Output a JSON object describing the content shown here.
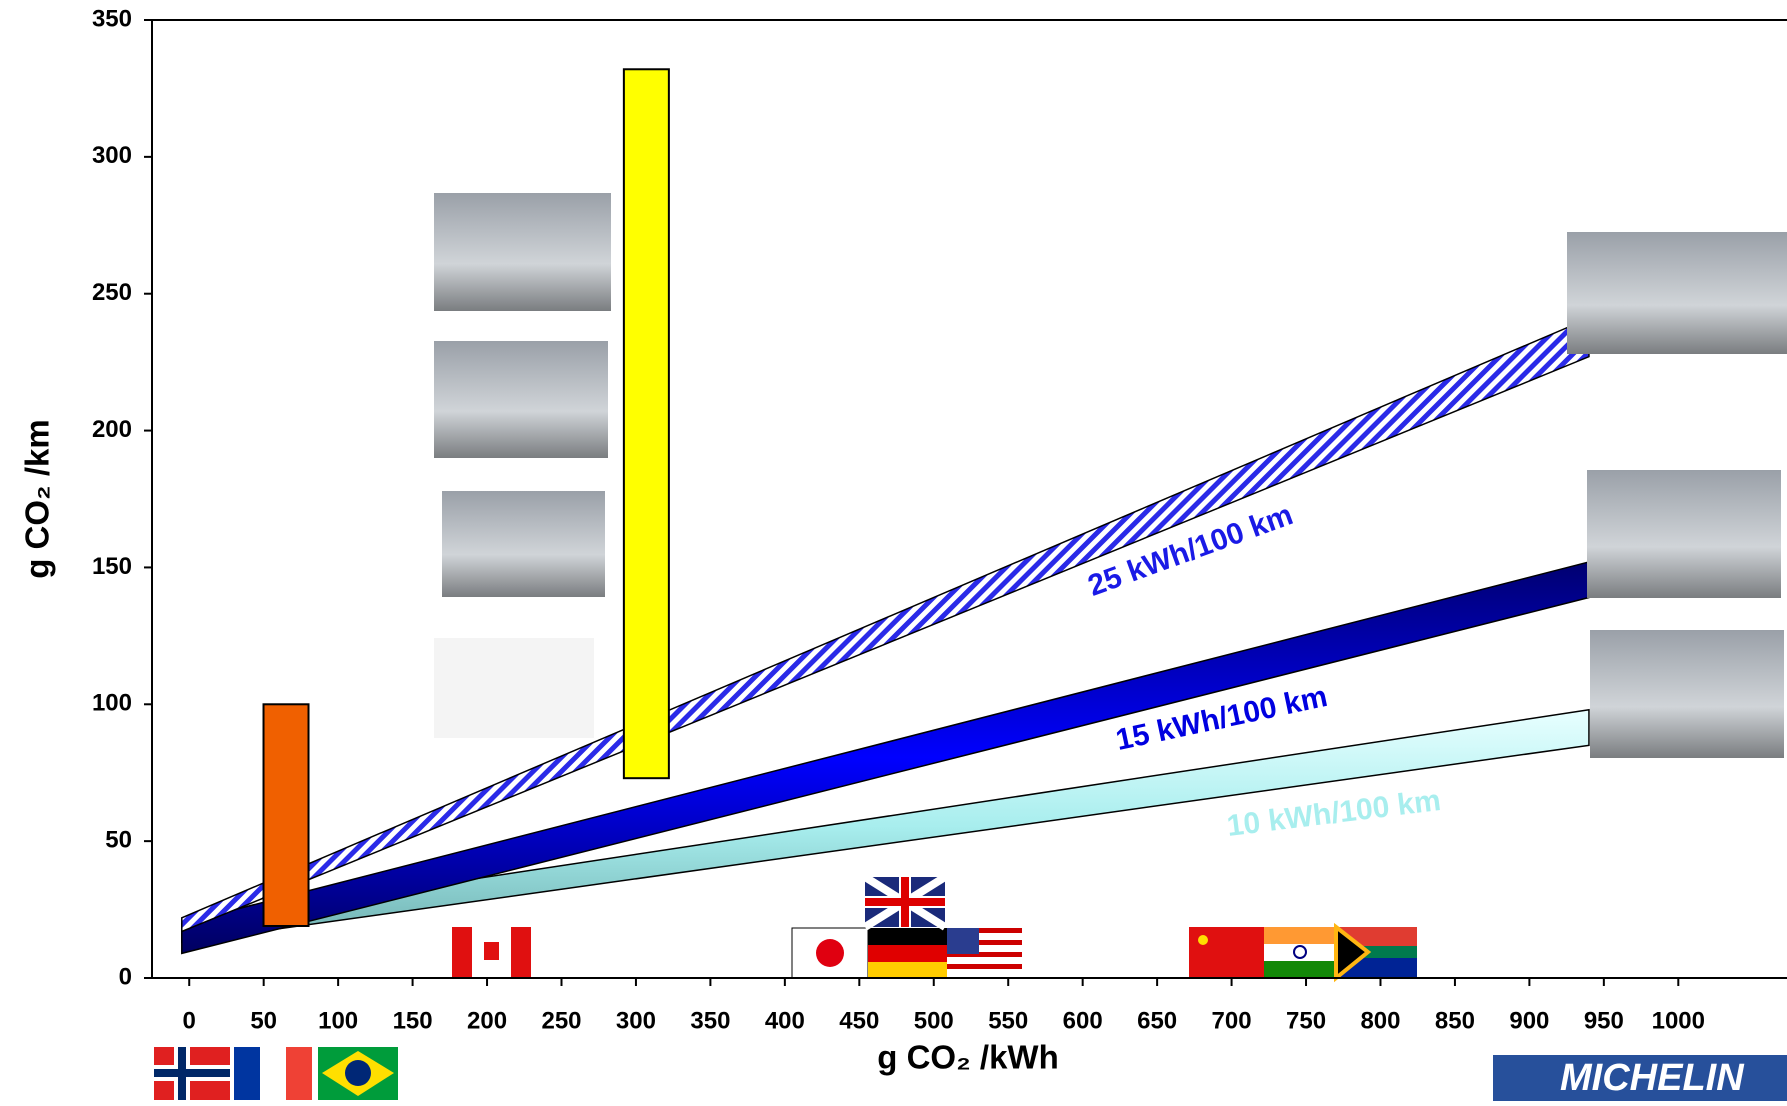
{
  "chart_data": {
    "type": "band",
    "y_label": "g CO₂ /km",
    "x_label": "g CO₂ /kWh",
    "xlim": [
      -25,
      1073
    ],
    "ylim": [
      0,
      350
    ],
    "xticks": [
      0,
      50,
      100,
      150,
      200,
      250,
      300,
      350,
      400,
      450,
      500,
      550,
      600,
      650,
      700,
      750,
      800,
      850,
      900,
      950,
      1000
    ],
    "yticks": [
      0,
      50,
      100,
      150,
      200,
      250,
      300,
      350
    ],
    "series": [
      {
        "name": "25 kWh/100 km",
        "color": "#1a1ae6",
        "x": [
          -5,
          940
        ],
        "upper": [
          22,
          241
        ],
        "lower": [
          17,
          227
        ]
      },
      {
        "name": "15 kWh/100 km",
        "color": "#0000e0",
        "x": [
          -5,
          940
        ],
        "upper": [
          20,
          152
        ],
        "lower": [
          9,
          139
        ]
      },
      {
        "name": "10 kWh/100 km",
        "color": "#a8eeee",
        "x": [
          -5,
          940
        ],
        "upper": [
          20,
          98
        ],
        "lower": [
          13,
          85
        ]
      }
    ],
    "bars": [
      {
        "x": 65,
        "low": 19,
        "high": 100,
        "color": "#f06000"
      },
      {
        "x": 307,
        "low": 73,
        "high": 332,
        "color": "#ffff00"
      }
    ],
    "logo": "MICHELIN"
  }
}
